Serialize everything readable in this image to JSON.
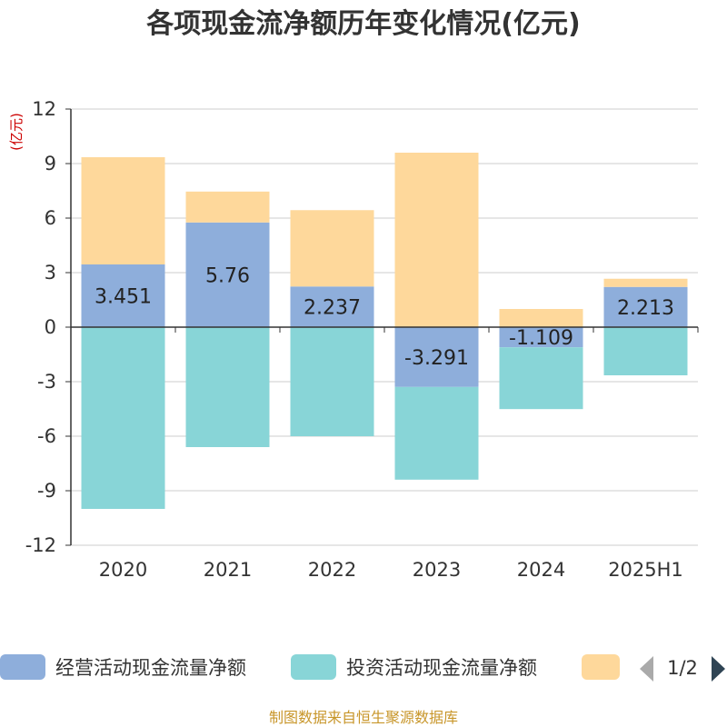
{
  "chart_data": {
    "type": "bar",
    "stacked": true,
    "title": "各项现金流净额历年变化情况(亿元)",
    "unit_label": "(亿元)",
    "categories": [
      "2020",
      "2021",
      "2022",
      "2023",
      "2024",
      "2025H1"
    ],
    "ylim": [
      -12,
      12
    ],
    "yticks": [
      12,
      9,
      6,
      3,
      0,
      -3,
      -6,
      -9,
      -12
    ],
    "grid": true,
    "legend_position": "bottom",
    "series": [
      {
        "name": "经营活动现金流量净额",
        "color": "#8eaedb",
        "values": [
          3.451,
          5.76,
          2.237,
          -3.291,
          -1.109,
          2.213
        ],
        "data_labels": [
          "3.451",
          "5.76",
          "2.237",
          "-3.291",
          "-1.109",
          "2.213"
        ]
      },
      {
        "name": "投资活动现金流量净额",
        "color": "#88d5d7",
        "values": [
          -10.0,
          -6.6,
          -6.0,
          -5.1,
          -3.4,
          -2.65
        ]
      },
      {
        "name": "",
        "color": "#fed89b",
        "values": [
          5.9,
          1.7,
          4.2,
          9.6,
          1.0,
          0.45
        ]
      }
    ]
  },
  "legend": {
    "pager": "1/2"
  },
  "footer": {
    "source": "制图数据来自恒生聚源数据库"
  }
}
